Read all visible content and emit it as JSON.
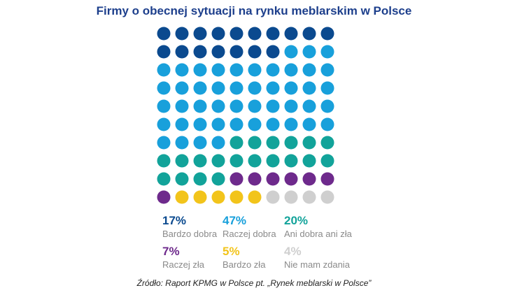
{
  "title": "Firmy o obecnej sytuacji na rynku meblarskim w Polsce",
  "source": "Źródło: Raport KPMG w Polsce pt. „Rynek meblarski w Polsce”",
  "chart_data": {
    "type": "waffle",
    "grid": {
      "rows": 10,
      "cols": 10
    },
    "categories": [
      {
        "label": "Bardzo dobra",
        "percent": "17%",
        "value": 17,
        "color": "#0b4a8f"
      },
      {
        "label": "Raczej dobra",
        "percent": "47%",
        "value": 47,
        "color": "#18a0db"
      },
      {
        "label": "Ani dobra ani zła",
        "percent": "20%",
        "value": 20,
        "color": "#12a39a"
      },
      {
        "label": "Raczej zła",
        "percent": "7%",
        "value": 7,
        "color": "#6e2a8c"
      },
      {
        "label": "Bardzo zła",
        "percent": "5%",
        "value": 5,
        "color": "#f2c41b"
      },
      {
        "label": "Nie mam zdania",
        "percent": "4%",
        "value": 4,
        "color": "#cfcfcf"
      }
    ]
  }
}
